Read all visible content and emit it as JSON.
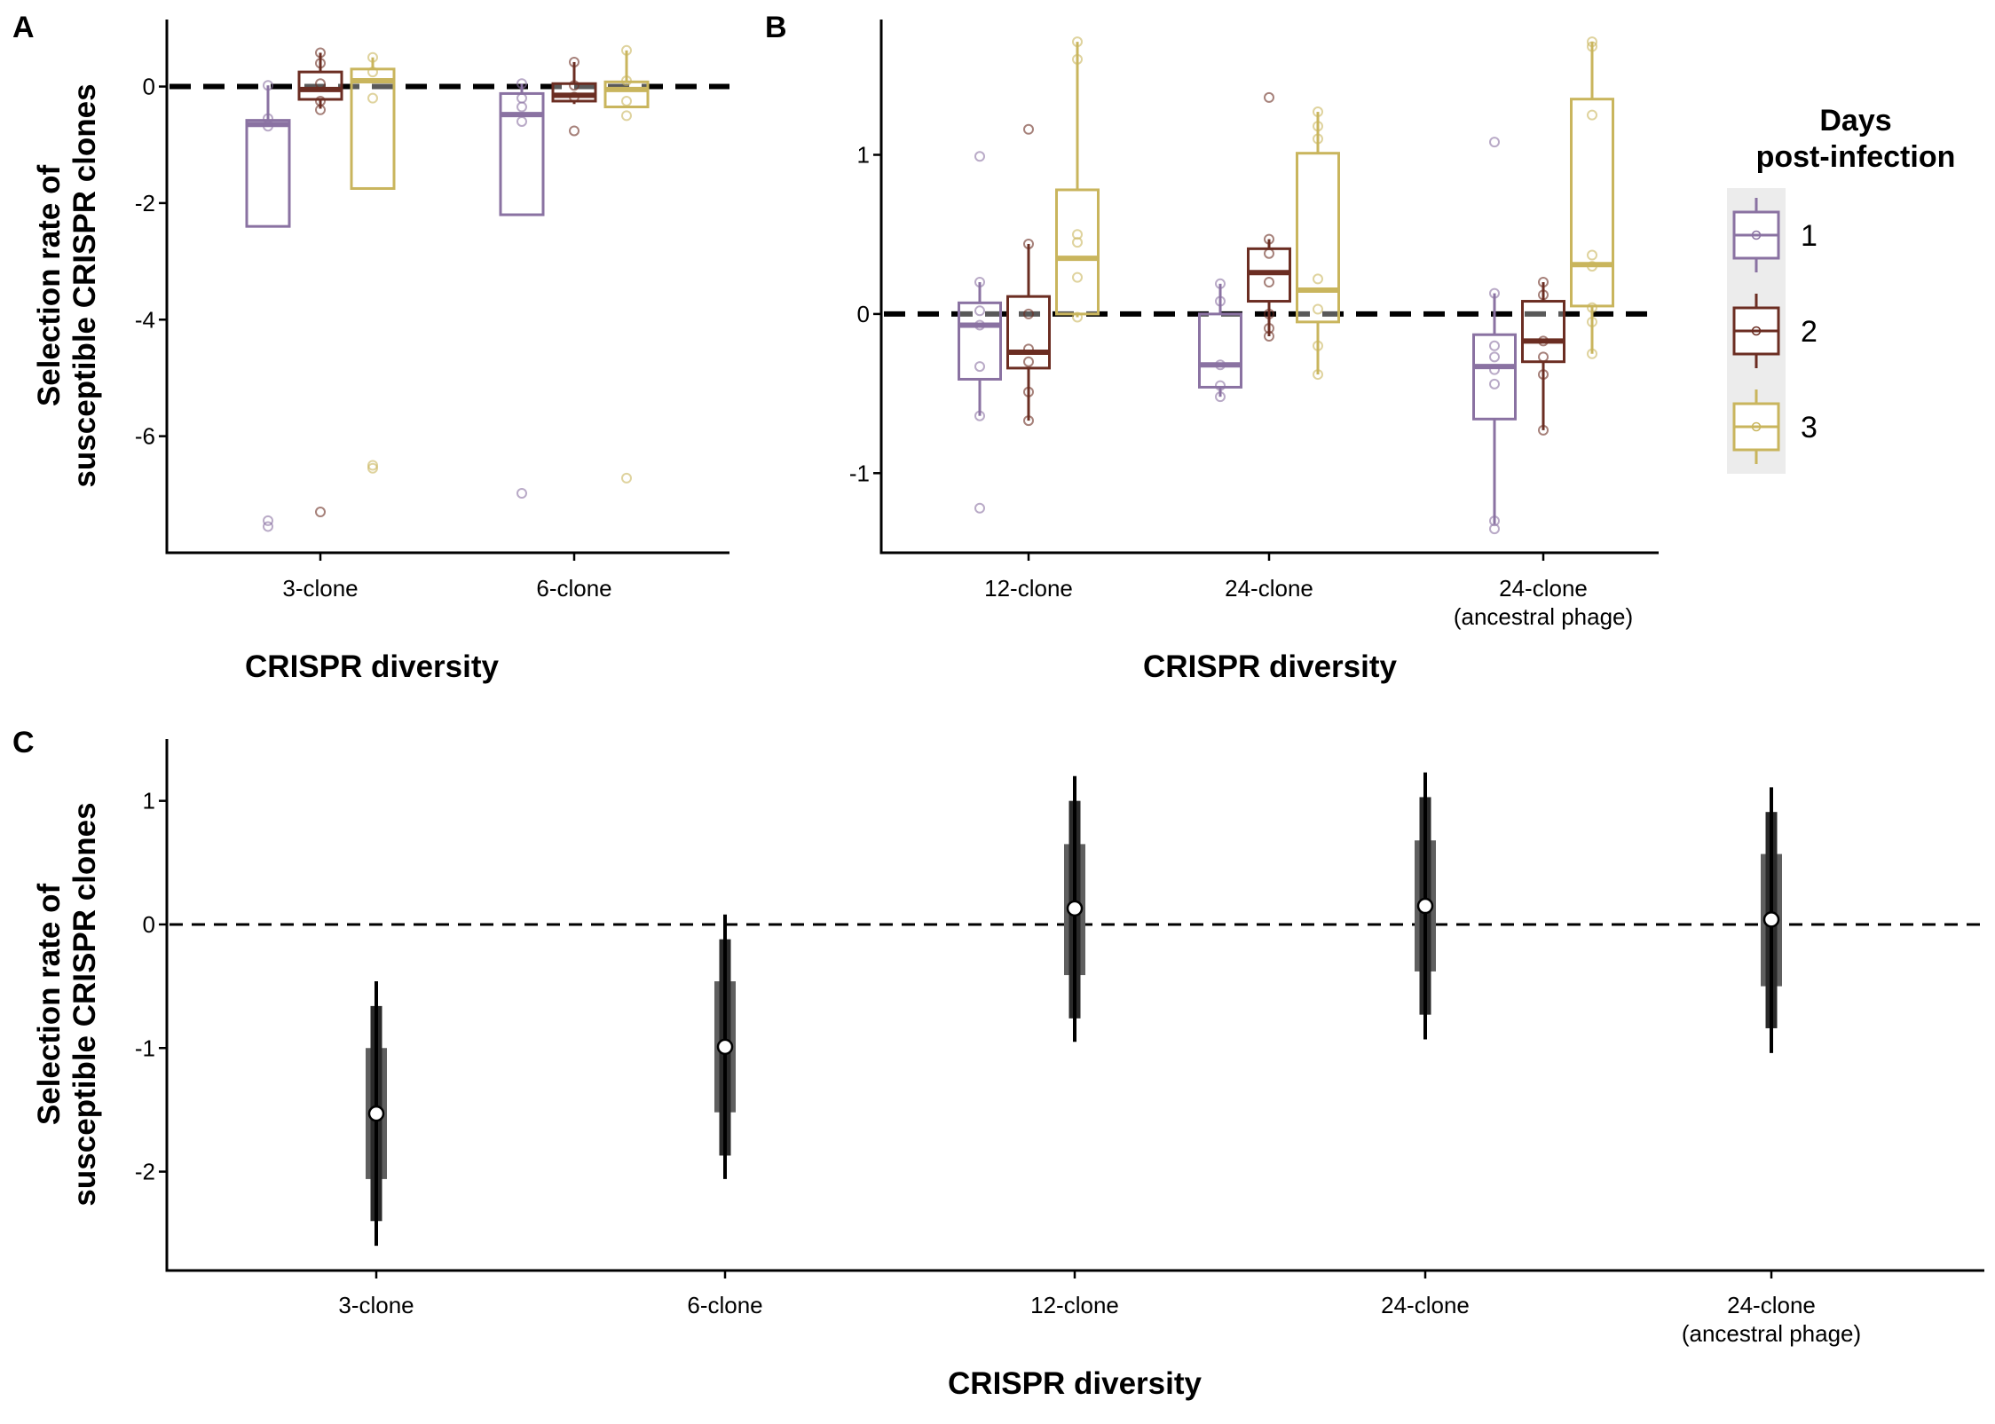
{
  "legend": {
    "title_line1": "Days",
    "title_line2": "post-infection",
    "entries": [
      {
        "label": "1",
        "color": "#8a72a2"
      },
      {
        "label": "2",
        "color": "#6b2d22"
      },
      {
        "label": "3",
        "color": "#c9b55d"
      }
    ]
  },
  "chart_data": [
    {
      "panel": "A",
      "type": "box",
      "xlabel": "CRISPR diversity",
      "ylabel": "Selection rate of susceptible CRISPR clones",
      "ylim": [
        -8,
        1.15
      ],
      "yticks": [
        "0",
        "-2",
        "-4",
        "-6"
      ],
      "reference_line": 0,
      "categories": [
        "3-clone",
        "6-clone"
      ],
      "series": [
        {
          "name": "1",
          "boxes": [
            {
              "q1": -2.4,
              "median": -0.65,
              "q3": -0.58,
              "whisker_low": -2.4,
              "whisker_high": 0.02,
              "points": [
                0.02,
                -0.55,
                -0.68,
                -7.45,
                -7.55
              ]
            },
            {
              "q1": -2.2,
              "median": -0.48,
              "q3": -0.12,
              "whisker_low": -2.2,
              "whisker_high": 0.05,
              "points": [
                0.05,
                -0.2,
                -0.35,
                -0.6,
                -6.98
              ]
            }
          ]
        },
        {
          "name": "2",
          "boxes": [
            {
              "q1": -0.22,
              "median": -0.05,
              "q3": 0.25,
              "whisker_low": -0.38,
              "whisker_high": 0.58,
              "points": [
                0.58,
                0.4,
                0.05,
                -0.25,
                -0.4,
                -7.3
              ]
            },
            {
              "q1": -0.25,
              "median": -0.15,
              "q3": 0.05,
              "whisker_low": -0.3,
              "whisker_high": 0.42,
              "points": [
                0.42,
                0.02,
                -0.18,
                -0.76
              ]
            }
          ]
        },
        {
          "name": "3",
          "boxes": [
            {
              "q1": -1.75,
              "median": 0.1,
              "q3": 0.3,
              "whisker_low": -1.75,
              "whisker_high": 0.5,
              "points": [
                0.5,
                0.25,
                -0.2,
                -6.5,
                -6.55
              ]
            },
            {
              "q1": -0.35,
              "median": -0.05,
              "q3": 0.08,
              "whisker_low": -0.35,
              "whisker_high": 0.62,
              "points": [
                0.62,
                0.1,
                -0.25,
                -0.5,
                -6.72
              ]
            }
          ]
        }
      ]
    },
    {
      "panel": "B",
      "type": "box",
      "xlabel": "CRISPR diversity",
      "ylabel": "",
      "ylim": [
        -1.5,
        1.85
      ],
      "yticks": [
        "1",
        "0",
        "-1"
      ],
      "reference_line": 0,
      "categories": [
        "12-clone",
        "24-clone",
        "24-clone (ancestral phage)"
      ],
      "category_lines": [
        [
          "12-clone"
        ],
        [
          "24-clone"
        ],
        [
          "24-clone",
          "(ancestral phage)"
        ]
      ],
      "series": [
        {
          "name": "1",
          "boxes": [
            {
              "q1": -0.41,
              "median": -0.07,
              "q3": 0.07,
              "whisker_low": -0.64,
              "whisker_high": 0.2,
              "points": [
                0.99,
                0.2,
                0.02,
                -0.07,
                -0.33,
                -0.64,
                -1.22
              ]
            },
            {
              "q1": -0.46,
              "median": -0.32,
              "q3": 0.0,
              "whisker_low": -0.52,
              "whisker_high": 0.19,
              "points": [
                0.19,
                0.08,
                -0.32,
                -0.45,
                -0.52
              ]
            },
            {
              "q1": -0.66,
              "median": -0.33,
              "q3": -0.13,
              "whisker_low": -1.32,
              "whisker_high": 0.13,
              "points": [
                1.08,
                0.13,
                -0.2,
                -0.27,
                -0.35,
                -0.44,
                -1.3,
                -1.35
              ]
            }
          ]
        },
        {
          "name": "2",
          "boxes": [
            {
              "q1": -0.34,
              "median": -0.24,
              "q3": 0.11,
              "whisker_low": -0.67,
              "whisker_high": 0.44,
              "points": [
                1.16,
                0.44,
                0.0,
                -0.22,
                -0.3,
                -0.49,
                -0.67
              ]
            },
            {
              "q1": 0.08,
              "median": 0.26,
              "q3": 0.41,
              "whisker_low": -0.14,
              "whisker_high": 0.47,
              "points": [
                1.36,
                0.47,
                0.38,
                0.2,
                0.0,
                -0.09,
                -0.14
              ]
            },
            {
              "q1": -0.3,
              "median": -0.17,
              "q3": 0.08,
              "whisker_low": -0.73,
              "whisker_high": 0.2,
              "points": [
                0.2,
                0.12,
                -0.17,
                -0.27,
                -0.38,
                -0.73
              ]
            }
          ]
        },
        {
          "name": "3",
          "boxes": [
            {
              "q1": 0.0,
              "median": 0.35,
              "q3": 0.78,
              "whisker_low": -0.02,
              "whisker_high": 1.71,
              "points": [
                1.71,
                1.6,
                0.5,
                0.45,
                0.23,
                -0.02
              ]
            },
            {
              "q1": -0.05,
              "median": 0.15,
              "q3": 1.01,
              "whisker_low": -0.38,
              "whisker_high": 1.27,
              "points": [
                1.27,
                1.18,
                1.1,
                0.22,
                0.03,
                -0.2,
                -0.38
              ]
            },
            {
              "q1": 0.05,
              "median": 0.31,
              "q3": 1.35,
              "whisker_low": -0.25,
              "whisker_high": 1.71,
              "points": [
                1.71,
                1.68,
                1.25,
                0.37,
                0.3,
                0.04,
                -0.05,
                -0.25
              ]
            }
          ]
        }
      ]
    },
    {
      "panel": "C",
      "type": "interval",
      "xlabel": "CRISPR diversity",
      "ylabel": "Selection rate of susceptible CRISPR clones",
      "ylim": [
        -2.8,
        1.5
      ],
      "yticks": [
        "1",
        "0",
        "-1",
        "-2"
      ],
      "reference_line": 0,
      "categories": [
        "3-clone",
        "6-clone",
        "12-clone",
        "24-clone",
        "24-clone (ancestral phage)"
      ],
      "category_lines": [
        [
          "3-clone"
        ],
        [
          "6-clone"
        ],
        [
          "12-clone"
        ],
        [
          "24-clone"
        ],
        [
          "24-clone",
          "(ancestral phage)"
        ]
      ],
      "estimates": [
        {
          "point": -1.53,
          "inner": [
            -2.06,
            -1.0
          ],
          "middle": [
            -2.4,
            -0.66
          ],
          "outer": [
            -2.6,
            -0.46
          ]
        },
        {
          "point": -0.99,
          "inner": [
            -1.52,
            -0.46
          ],
          "middle": [
            -1.87,
            -0.12
          ],
          "outer": [
            -2.06,
            0.08
          ]
        },
        {
          "point": 0.13,
          "inner": [
            -0.41,
            0.65
          ],
          "middle": [
            -0.76,
            1.0
          ],
          "outer": [
            -0.95,
            1.2
          ]
        },
        {
          "point": 0.15,
          "inner": [
            -0.38,
            0.68
          ],
          "middle": [
            -0.73,
            1.03
          ],
          "outer": [
            -0.93,
            1.23
          ]
        },
        {
          "point": 0.04,
          "inner": [
            -0.5,
            0.57
          ],
          "middle": [
            -0.84,
            0.91
          ],
          "outer": [
            -1.04,
            1.11
          ]
        }
      ]
    }
  ]
}
